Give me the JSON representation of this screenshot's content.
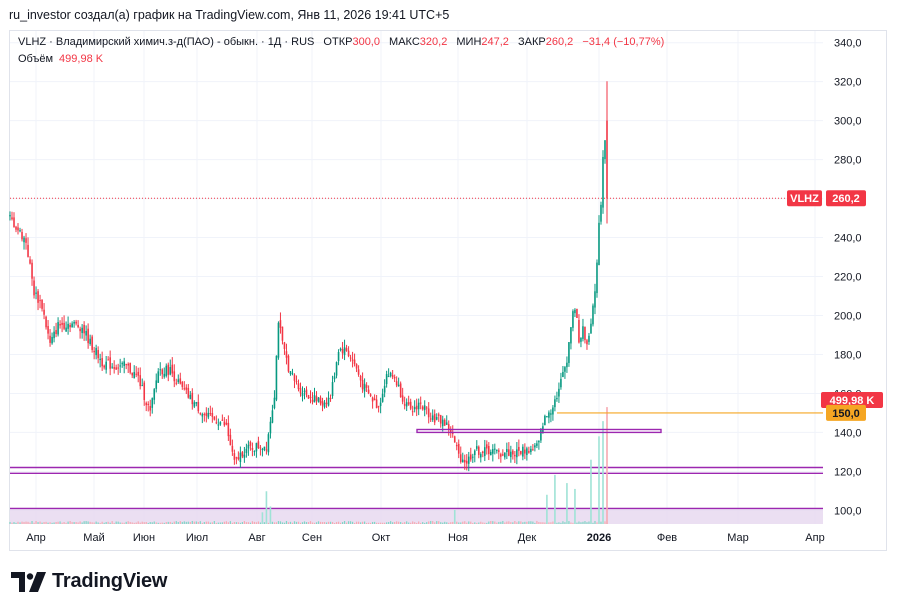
{
  "header": {
    "attribution": "ru_investor создал(а) график на TradingView.com, Янв 11, 2026 19:41 UTC+5"
  },
  "legend": {
    "symbol": "VLHZ · Владимирский химич.з-д(ПАО) - обыкн. · 1Д · RUS",
    "open_label": "ОТКР",
    "open": "300,0",
    "high_label": "МАКС",
    "high": "320,2",
    "low_label": "МИН",
    "low": "247,2",
    "close_label": "ЗАКР",
    "close": "260,2",
    "change": "−31,4 (−10,77%)",
    "volume_label": "Объём",
    "volume": "499,98 K"
  },
  "price_tag": {
    "ticker": "VLHZ",
    "value": "260,2"
  },
  "volume_tag": {
    "value": "499,98 K"
  },
  "level_tag": {
    "value": "150,0"
  },
  "logo": {
    "brand": "TradingView",
    "icon": "tradingview-logo-icon"
  },
  "colors": {
    "up": "#089981",
    "down": "#f23645",
    "last_price": "#f23645",
    "level_line": "#f5a623",
    "hline": "#9c27b0",
    "volume_band": "#e6d7ef"
  },
  "chart_data": {
    "type": "candlestick",
    "ylim": [
      93,
      346
    ],
    "y_ticks": [
      "340,0",
      "320,0",
      "300,0",
      "280,0",
      "260,0",
      "240,0",
      "220,0",
      "200,0",
      "180,0",
      "160,0",
      "140,0",
      "120,0",
      "100,0"
    ],
    "x_labels": [
      "Апр",
      "Май",
      "Июн",
      "Июл",
      "Авг",
      "Сен",
      "Окт",
      "Ноя",
      "Дек",
      "2026",
      "Фев",
      "Мар",
      "Апр"
    ],
    "last_price": 260.2,
    "horizontal_lines": [
      {
        "y": 122,
        "color": "#9c27b0"
      },
      {
        "y": 119,
        "color": "#9c27b0"
      },
      {
        "y": 101,
        "color": "#9c27b0"
      }
    ],
    "level_line": {
      "y": 150,
      "from": "Дек"
    },
    "zone": {
      "from": "Окт",
      "to": "Дек",
      "top": 141.5,
      "bottom": 140
    },
    "close_path": [
      {
        "t": 0,
        "v": 250
      },
      {
        "t": 4,
        "v": 244
      },
      {
        "t": 8,
        "v": 238
      },
      {
        "t": 12,
        "v": 212
      },
      {
        "t": 16,
        "v": 205
      },
      {
        "t": 20,
        "v": 185
      },
      {
        "t": 24,
        "v": 195
      },
      {
        "t": 30,
        "v": 196
      },
      {
        "t": 36,
        "v": 194
      },
      {
        "t": 40,
        "v": 186
      },
      {
        "t": 46,
        "v": 176
      },
      {
        "t": 52,
        "v": 174
      },
      {
        "t": 58,
        "v": 174
      },
      {
        "t": 64,
        "v": 168
      },
      {
        "t": 70,
        "v": 150
      },
      {
        "t": 74,
        "v": 172
      },
      {
        "t": 80,
        "v": 172
      },
      {
        "t": 86,
        "v": 162
      },
      {
        "t": 92,
        "v": 155
      },
      {
        "t": 98,
        "v": 148
      },
      {
        "t": 104,
        "v": 146
      },
      {
        "t": 108,
        "v": 143
      },
      {
        "t": 112,
        "v": 124
      },
      {
        "t": 116,
        "v": 130
      },
      {
        "t": 120,
        "v": 132
      },
      {
        "t": 124,
        "v": 133
      },
      {
        "t": 128,
        "v": 133
      },
      {
        "t": 132,
        "v": 160
      },
      {
        "t": 134,
        "v": 198
      },
      {
        "t": 136,
        "v": 185
      },
      {
        "t": 140,
        "v": 170
      },
      {
        "t": 144,
        "v": 163
      },
      {
        "t": 148,
        "v": 160
      },
      {
        "t": 152,
        "v": 157
      },
      {
        "t": 156,
        "v": 155
      },
      {
        "t": 160,
        "v": 158
      },
      {
        "t": 164,
        "v": 183
      },
      {
        "t": 168,
        "v": 182
      },
      {
        "t": 172,
        "v": 175
      },
      {
        "t": 176,
        "v": 164
      },
      {
        "t": 180,
        "v": 158
      },
      {
        "t": 184,
        "v": 153
      },
      {
        "t": 188,
        "v": 170
      },
      {
        "t": 192,
        "v": 168
      },
      {
        "t": 196,
        "v": 158
      },
      {
        "t": 200,
        "v": 150
      },
      {
        "t": 204,
        "v": 155
      },
      {
        "t": 208,
        "v": 151
      },
      {
        "t": 212,
        "v": 147
      },
      {
        "t": 216,
        "v": 146
      },
      {
        "t": 220,
        "v": 141
      },
      {
        "t": 224,
        "v": 128
      },
      {
        "t": 228,
        "v": 125
      },
      {
        "t": 232,
        "v": 131
      },
      {
        "t": 236,
        "v": 130
      },
      {
        "t": 240,
        "v": 131
      },
      {
        "t": 244,
        "v": 129
      },
      {
        "t": 248,
        "v": 130
      },
      {
        "t": 252,
        "v": 129
      },
      {
        "t": 256,
        "v": 131
      },
      {
        "t": 260,
        "v": 131
      },
      {
        "t": 264,
        "v": 134
      },
      {
        "t": 266,
        "v": 145
      },
      {
        "t": 270,
        "v": 152
      },
      {
        "t": 274,
        "v": 162
      },
      {
        "t": 278,
        "v": 178
      },
      {
        "t": 280,
        "v": 195
      },
      {
        "t": 282,
        "v": 205
      },
      {
        "t": 284,
        "v": 188
      },
      {
        "t": 286,
        "v": 192
      },
      {
        "t": 288,
        "v": 185
      },
      {
        "t": 290,
        "v": 198
      },
      {
        "t": 292,
        "v": 210
      },
      {
        "t": 294,
        "v": 248
      },
      {
        "t": 295,
        "v": 258
      },
      {
        "t": 296,
        "v": 283
      },
      {
        "t": 297,
        "v": 291
      },
      {
        "t": 298,
        "v": 260.2
      }
    ],
    "volume_spikes": [
      {
        "t": 126,
        "v": 0.1
      },
      {
        "t": 128,
        "v": 0.28
      },
      {
        "t": 130,
        "v": 0.15
      },
      {
        "t": 222,
        "v": 0.12
      },
      {
        "t": 268,
        "v": 0.25
      },
      {
        "t": 272,
        "v": 0.42
      },
      {
        "t": 278,
        "v": 0.35
      },
      {
        "t": 282,
        "v": 0.3
      },
      {
        "t": 290,
        "v": 0.55
      },
      {
        "t": 294,
        "v": 0.75
      },
      {
        "t": 296,
        "v": 0.88
      },
      {
        "t": 298,
        "v": 1.0
      }
    ]
  }
}
